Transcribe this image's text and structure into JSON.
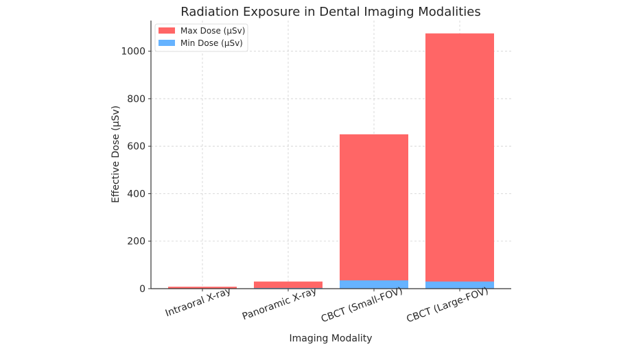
{
  "chart_data": {
    "type": "bar",
    "stacking": "overlay",
    "title": "Radiation Exposure in Dental Imaging Modalities",
    "xlabel": "Imaging Modality",
    "ylabel": "Effective Dose (µSv)",
    "categories": [
      "Intraoral X-ray",
      "Panoramic X-ray",
      "CBCT (Small-FOV)",
      "CBCT (Large-FOV)"
    ],
    "series": [
      {
        "name": "Max Dose (µSv)",
        "color": "#ff6666",
        "values": [
          8,
          30,
          650,
          1075
        ]
      },
      {
        "name": "Min Dose (µSv)",
        "color": "#66b3ff",
        "values": [
          1,
          3,
          35,
          30
        ]
      }
    ],
    "ylim": [
      0,
      1129
    ],
    "yticks": [
      "0",
      "200",
      "400",
      "600",
      "800",
      "1000"
    ],
    "grid": true,
    "legend": "top-left"
  }
}
